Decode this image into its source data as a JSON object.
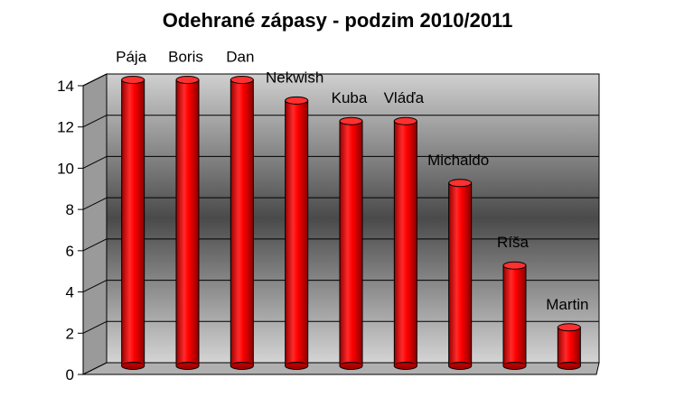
{
  "chart_data": {
    "type": "bar",
    "title": "Odehrané zápasy - podzim 2010/2011",
    "categories": [
      "Pája",
      "Boris",
      "Dan",
      "Nekwish",
      "Kuba",
      "Vláďa",
      "Michaldo",
      "Ríša",
      "Martin"
    ],
    "values": [
      14,
      14,
      14,
      13,
      12,
      12,
      9,
      5,
      2
    ],
    "ylim": [
      0,
      14
    ],
    "yticks": [
      0,
      2,
      4,
      6,
      8,
      10,
      12,
      14
    ],
    "grid": true,
    "bar_color": "#ff0000",
    "wall_color": "#6e6e6e",
    "floor_color": "#b0b0b0"
  }
}
